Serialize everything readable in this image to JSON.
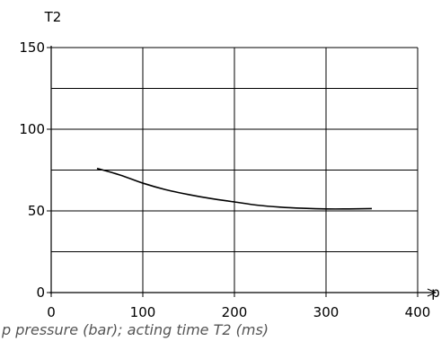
{
  "chart_data": {
    "type": "line",
    "xlabel": "p",
    "ylabel": "T2",
    "xlim": [
      0,
      400
    ],
    "ylim": [
      0,
      150
    ],
    "x_ticks": [
      0,
      100,
      200,
      300,
      400
    ],
    "y_ticks": [
      0,
      50,
      100,
      150
    ],
    "grid": true,
    "x_grid_step": 100,
    "y_grid_step": 25,
    "series": [
      {
        "x": [
          50,
          75,
          100,
          125,
          150,
          175,
          200,
          225,
          250,
          275,
          300,
          325,
          350
        ],
        "y": [
          76,
          72,
          67,
          63,
          60,
          57.5,
          55.5,
          53.5,
          52.3,
          51.6,
          51.2,
          51.2,
          51.4
        ]
      }
    ]
  },
  "caption": "p pressure (bar); acting time T2 (ms)"
}
